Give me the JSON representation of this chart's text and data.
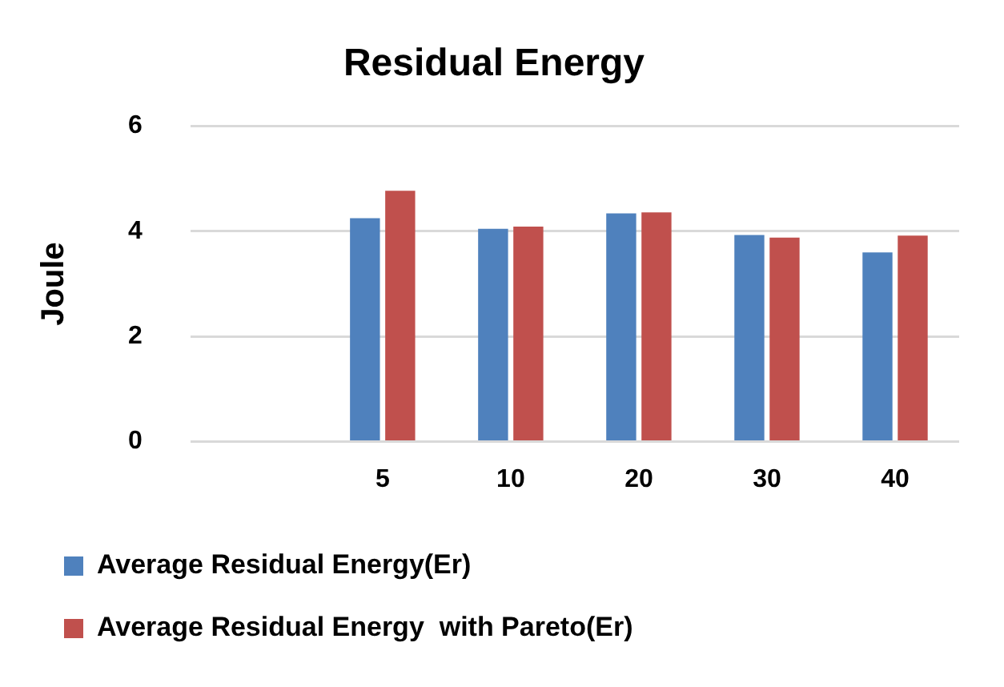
{
  "chart_data": {
    "type": "bar",
    "title": "Residual Energy",
    "ylabel": "Joule",
    "categories": [
      null,
      "5",
      "10",
      "20",
      "30",
      "40"
    ],
    "series": [
      {
        "name": "Average Residual Energy(Er)",
        "color": "#4f81bd",
        "values": [
          null,
          4.25,
          4.05,
          4.34,
          3.93,
          3.6
        ]
      },
      {
        "name": "Average Residual Energy  with Pareto(Er)",
        "color": "#c0504d",
        "values": [
          null,
          4.77,
          4.09,
          4.36,
          3.88,
          3.92
        ]
      }
    ],
    "ylim": [
      0,
      6
    ],
    "yticks": [
      0,
      2,
      4,
      6
    ],
    "grid": "y",
    "legend": "bottom"
  }
}
